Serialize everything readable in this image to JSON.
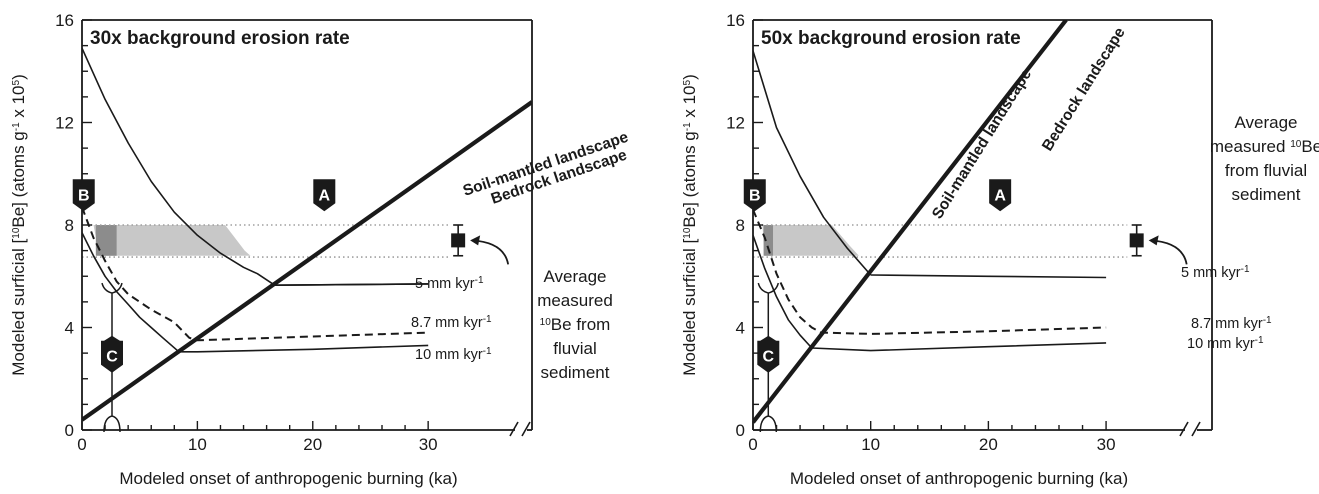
{
  "colors": {
    "axis": "#1a1a1a",
    "band_light": "#c8c8c8",
    "band_dark": "#8c8c8c",
    "dotted": "#a0a0a0",
    "marker": "#1a1a1a"
  },
  "chart_data": [
    {
      "type": "line",
      "title": "30x background erosion rate",
      "xlabel": "Modeled onset of anthropogenic burning (ka)",
      "ylabel_parts": [
        "Modeled surficial [",
        "10",
        "Be] (atoms g",
        "-1",
        " x 10",
        "5",
        ")"
      ],
      "xlim": [
        0,
        39
      ],
      "ylim": [
        0,
        16
      ],
      "x_ticks": [
        "0",
        "10",
        "20",
        "30"
      ],
      "y_ticks": [
        "0",
        "4",
        "8",
        "12",
        "16"
      ],
      "x_tick_values": [
        0,
        10,
        20,
        30
      ],
      "y_tick_values": [
        0,
        4,
        8,
        12,
        16
      ],
      "axis_break": "after 30",
      "grid": false,
      "series": [
        {
          "name": "Bedrock landscape",
          "style": "thick",
          "x": [
            0,
            39
          ],
          "y": [
            0.4,
            12.8
          ]
        },
        {
          "name": "Soil-mantled landscape",
          "style": "thin",
          "x": [
            0,
            2,
            4,
            6,
            8,
            10,
            12,
            14,
            15.2,
            16.7,
            30
          ],
          "y": [
            14.9,
            12.9,
            11.2,
            9.7,
            8.5,
            7.6,
            6.9,
            6.35,
            6.1,
            5.65,
            5.7
          ]
        },
        {
          "name": "5 mm kyr-1",
          "style": "thin",
          "x": [
            16.7,
            30
          ],
          "y": [
            5.65,
            5.7
          ]
        },
        {
          "name": "8.7 mm kyr-1",
          "style": "dashed",
          "x": [
            0,
            1,
            2,
            3,
            4,
            5,
            6,
            7,
            8,
            9.3,
            10,
            20,
            30
          ],
          "y": [
            8.7,
            7.5,
            6.6,
            5.8,
            5.3,
            5.0,
            4.7,
            4.45,
            4.2,
            3.6,
            3.5,
            3.65,
            3.8
          ]
        },
        {
          "name": "10 mm kyr-1",
          "style": "thin",
          "x": [
            0,
            1,
            2,
            3,
            4,
            5,
            6,
            7,
            8.4,
            10,
            20,
            30
          ],
          "y": [
            7.7,
            6.8,
            6.0,
            5.4,
            4.9,
            4.4,
            4.0,
            3.6,
            3.05,
            3.05,
            3.15,
            3.3
          ]
        }
      ],
      "band": {
        "y": [
          6.8,
          8.0
        ],
        "x_dark": [
          1.2,
          3.0
        ]
      },
      "band_polygon": [
        [
          1.0,
          8.0
        ],
        [
          12.4,
          8.0
        ],
        [
          14.1,
          7.0
        ],
        [
          14.6,
          6.8
        ],
        [
          1.5,
          6.8
        ]
      ],
      "dotted_lines_y": [
        8.0,
        6.75
      ],
      "measured": {
        "x": 32.6,
        "y": 7.4,
        "err": [
          6.8,
          8.0
        ]
      },
      "markers": [
        {
          "letter": "A",
          "x": 21,
          "y": 9.2
        },
        {
          "letter": "B",
          "x": 0.15,
          "y": 9.2
        },
        {
          "letter": "C",
          "x": 2.6,
          "y": 2.9
        }
      ],
      "bracket_c": {
        "x": 2.6,
        "y_top": 5.5,
        "y_bottom": 0
      },
      "labels": {
        "rate_5_prefix": "5 mm kyr",
        "rate_5_sup": "-1",
        "rate_87_prefix": "8.7 mm kyr",
        "rate_87_sup": "-1",
        "rate_10_prefix": "10 mm kyr",
        "rate_10_sup": "-1",
        "soil": "Soil-mantled landscape",
        "bedrock": "Bedrock landscape",
        "avg_lines": [
          {
            "text": "Average"
          },
          {
            "text": "measured"
          },
          {
            "text": "Be from",
            "sup": "10"
          },
          {
            "text": "fluvial"
          },
          {
            "text": "sediment"
          }
        ]
      }
    },
    {
      "type": "line",
      "title": "50x background erosion rate",
      "xlabel": "Modeled onset of anthropogenic burning (ka)",
      "ylabel_parts": [
        "Modeled surficial [",
        "10",
        "Be] (atoms g",
        "-1",
        " x 10",
        "5",
        ")"
      ],
      "xlim": [
        0,
        39
      ],
      "ylim": [
        0,
        16
      ],
      "x_ticks": [
        "0",
        "10",
        "20",
        "30"
      ],
      "y_ticks": [
        "0",
        "4",
        "8",
        "12",
        "16"
      ],
      "x_tick_values": [
        0,
        10,
        20,
        30
      ],
      "y_tick_values": [
        0,
        4,
        8,
        12,
        16
      ],
      "axis_break": "after 30",
      "grid": false,
      "series": [
        {
          "name": "Bedrock landscape",
          "style": "thick",
          "x": [
            0,
            26.6
          ],
          "y": [
            0.3,
            16
          ]
        },
        {
          "name": "Soil-mantled landscape",
          "style": "thin",
          "x": [
            0,
            2,
            4,
            6,
            8,
            10
          ],
          "y": [
            14.8,
            11.8,
            9.9,
            8.3,
            7.1,
            6.05
          ]
        },
        {
          "name": "5 mm kyr-1",
          "style": "thin",
          "x": [
            10,
            20,
            30
          ],
          "y": [
            6.05,
            6.0,
            5.95
          ]
        },
        {
          "name": "8.7 mm kyr-1",
          "style": "dashed",
          "x": [
            0,
            1,
            2,
            3,
            4,
            5,
            5.8,
            10,
            20,
            30
          ],
          "y": [
            8.6,
            7.5,
            6.1,
            5.1,
            4.4,
            4.0,
            3.8,
            3.75,
            3.85,
            4.0
          ]
        },
        {
          "name": "10 mm kyr-1",
          "style": "thin",
          "x": [
            0,
            1,
            2,
            3,
            4,
            5,
            10,
            20,
            30
          ],
          "y": [
            7.6,
            6.3,
            5.2,
            4.3,
            3.7,
            3.2,
            3.1,
            3.25,
            3.4
          ]
        }
      ],
      "band": {
        "y": [
          6.8,
          8.0
        ],
        "x_dark": [
          0.9,
          1.7
        ]
      },
      "band_polygon": [
        [
          0.8,
          8.0
        ],
        [
          6.7,
          8.0
        ],
        [
          8.2,
          7.2
        ],
        [
          9.0,
          6.8
        ],
        [
          1.0,
          6.8
        ]
      ],
      "dotted_lines_y": [
        8.0,
        6.75
      ],
      "measured": {
        "x": 32.6,
        "y": 7.4,
        "err": [
          6.8,
          8.0
        ]
      },
      "markers": [
        {
          "letter": "A",
          "x": 21,
          "y": 9.2
        },
        {
          "letter": "B",
          "x": 0.15,
          "y": 9.2
        },
        {
          "letter": "C",
          "x": 1.3,
          "y": 2.9
        }
      ],
      "bracket_c": {
        "x": 1.3,
        "y_top": 5.5,
        "y_bottom": 0
      },
      "labels": {
        "rate_5_prefix": "5 mm kyr",
        "rate_5_sup": "-1",
        "rate_87_prefix": "8.7 mm kyr",
        "rate_87_sup": "-1",
        "rate_10_prefix": "10 mm kyr",
        "rate_10_sup": "-1",
        "soil": "Soil-mantled landscape",
        "bedrock": "Bedrock landscape",
        "avg_lines": [
          {
            "text": "Average"
          },
          {
            "text": "measured",
            "sup": "10",
            "after": "Be"
          },
          {
            "text": "from fluvial"
          },
          {
            "text": "sediment"
          }
        ]
      }
    }
  ]
}
